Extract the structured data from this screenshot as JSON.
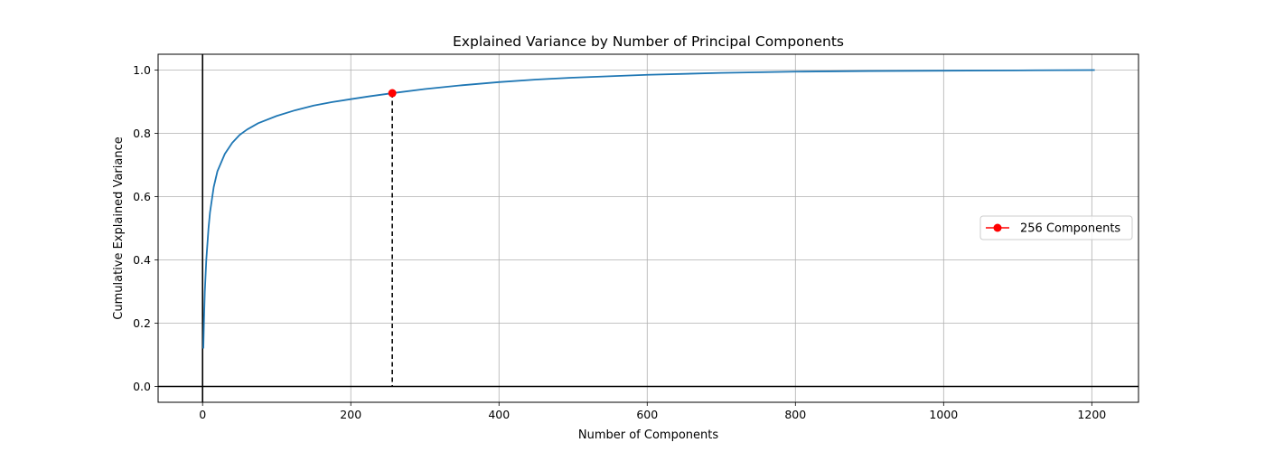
{
  "chart_data": {
    "type": "line",
    "title": "Explained Variance by Number of Principal Components",
    "xlabel": "Number of Components",
    "ylabel": "Cumulative Explained Variance",
    "xlim": [
      -60,
      1263
    ],
    "ylim": [
      -0.05,
      1.05
    ],
    "xticks": [
      0,
      200,
      400,
      600,
      800,
      1000,
      1200
    ],
    "xtick_labels": [
      "0",
      "200",
      "400",
      "600",
      "800",
      "1000",
      "1200"
    ],
    "yticks": [
      0.0,
      0.2,
      0.4,
      0.6,
      0.8,
      1.0
    ],
    "ytick_labels": [
      "0.0",
      "0.2",
      "0.4",
      "0.6",
      "0.8",
      "1.0"
    ],
    "grid": true,
    "legend_position": "center-right",
    "series": [
      {
        "color": "#1f77b4",
        "x": [
          1,
          2,
          3,
          5,
          8,
          10,
          15,
          20,
          30,
          40,
          50,
          60,
          75,
          100,
          125,
          150,
          175,
          200,
          225,
          256,
          300,
          350,
          400,
          450,
          500,
          600,
          700,
          800,
          900,
          1000,
          1100,
          1204
        ],
        "y": [
          0.12,
          0.22,
          0.3,
          0.4,
          0.5,
          0.55,
          0.63,
          0.68,
          0.735,
          0.77,
          0.795,
          0.812,
          0.832,
          0.855,
          0.873,
          0.888,
          0.899,
          0.908,
          0.917,
          0.927,
          0.94,
          0.952,
          0.962,
          0.97,
          0.976,
          0.985,
          0.991,
          0.995,
          0.997,
          0.998,
          0.999,
          1.0
        ]
      }
    ],
    "marker": {
      "label": "256 Components",
      "x": 256,
      "y": 0.927,
      "color": "#ff0000"
    },
    "reference_lines": {
      "vertical_x": 0,
      "horizontal_y": 0
    }
  }
}
